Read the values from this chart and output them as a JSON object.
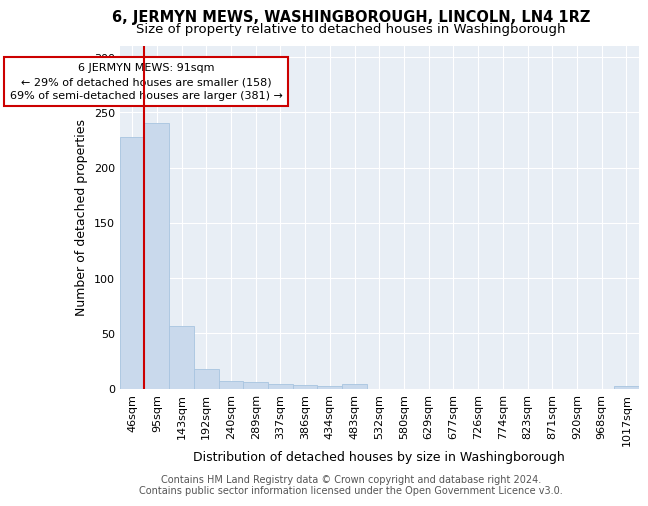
{
  "title": "6, JERMYN MEWS, WASHINGBOROUGH, LINCOLN, LN4 1RZ",
  "subtitle": "Size of property relative to detached houses in Washingborough",
  "xlabel": "Distribution of detached houses by size in Washingborough",
  "ylabel": "Number of detached properties",
  "bar_color": "#c9d9ec",
  "bar_edge_color": "#a8c4e0",
  "marker_line_color": "#cc0000",
  "annotation_text": "6 JERMYN MEWS: 91sqm\n← 29% of detached houses are smaller (158)\n69% of semi-detached houses are larger (381) →",
  "annotation_box_color": "#ffffff",
  "annotation_box_edge": "#cc0000",
  "categories": [
    "46sqm",
    "95sqm",
    "143sqm",
    "192sqm",
    "240sqm",
    "289sqm",
    "337sqm",
    "386sqm",
    "434sqm",
    "483sqm",
    "532sqm",
    "580sqm",
    "629sqm",
    "677sqm",
    "726sqm",
    "774sqm",
    "823sqm",
    "871sqm",
    "920sqm",
    "968sqm",
    "1017sqm"
  ],
  "values": [
    228,
    240,
    57,
    18,
    7,
    6,
    4,
    3,
    2,
    4,
    0,
    0,
    0,
    0,
    0,
    0,
    0,
    0,
    0,
    0,
    2
  ],
  "ylim": [
    0,
    310
  ],
  "yticks": [
    0,
    50,
    100,
    150,
    200,
    250,
    300
  ],
  "background_color": "#e8eef5",
  "footer_text": "Contains HM Land Registry data © Crown copyright and database right 2024.\nContains public sector information licensed under the Open Government Licence v3.0.",
  "title_fontsize": 10.5,
  "subtitle_fontsize": 9.5,
  "axis_label_fontsize": 9,
  "tick_fontsize": 8,
  "footer_fontsize": 7
}
